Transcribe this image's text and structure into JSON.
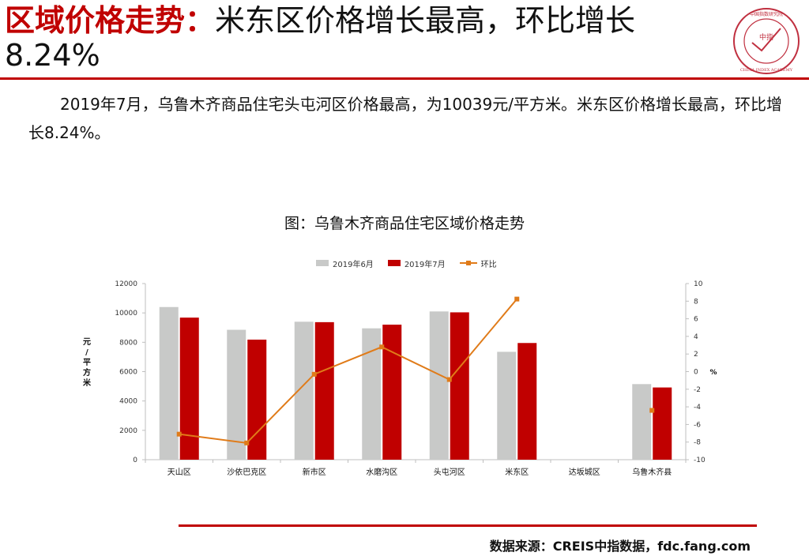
{
  "header": {
    "title_bold": "区域价格走势：",
    "title_rest": "米东区价格增长最高，环比增长8.24%"
  },
  "logo": {
    "center_text": "中指",
    "ring_text": "CHINA INDEX ACADEMY",
    "top_text": "中国指数研究院",
    "colors": {
      "ring": "#c03040"
    }
  },
  "paragraph": "2019年7月，乌鲁木齐商品住宅头屯河区价格最高，为10039元/平方米。米东区价格增长最高，环比增长8.24%。",
  "chart_data": {
    "type": "bar",
    "title": "图：乌鲁木齐商品住宅区域价格走势",
    "categories": [
      "天山区",
      "沙依巴克区",
      "新市区",
      "水磨沟区",
      "头屯河区",
      "米东区",
      "达坂城区",
      "乌鲁木齐县"
    ],
    "series": [
      {
        "name": "2019年6月",
        "kind": "bar",
        "axis": "left",
        "color": "#c8c9c8",
        "values": [
          10400,
          8850,
          9400,
          8950,
          10100,
          7350,
          null,
          5150
        ]
      },
      {
        "name": "2019年7月",
        "kind": "bar",
        "axis": "left",
        "color": "#c00000",
        "values": [
          9680,
          8180,
          9370,
          9200,
          10039,
          7950,
          null,
          4920
        ]
      },
      {
        "name": "环比",
        "kind": "line",
        "axis": "right",
        "color": "#e07b19",
        "values": [
          -7.1,
          -8.1,
          -0.3,
          2.8,
          -0.9,
          8.24,
          null,
          -4.4
        ]
      }
    ],
    "ylabel": "元/平方米",
    "y2label": "%",
    "ylim": [
      0,
      12000
    ],
    "yticks": [
      0,
      2000,
      4000,
      6000,
      8000,
      10000,
      12000
    ],
    "y2lim": [
      -10,
      10
    ],
    "y2ticks": [
      -10,
      -8,
      -6,
      -4,
      -2,
      0,
      2,
      4,
      6,
      8,
      10
    ],
    "legend_position": "top",
    "grid": false
  },
  "footer": {
    "source": "数据来源：CREIS中指数据，fdc.fang.com"
  }
}
